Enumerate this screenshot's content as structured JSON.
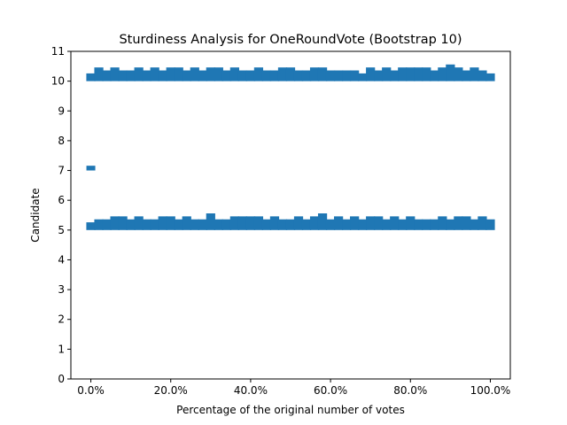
{
  "chart_data": {
    "type": "scatter",
    "title": "Sturdiness Analysis for OneRoundVote (Bootstrap 10)",
    "xlabel": "Percentage of the original number of votes",
    "ylabel": "Candidate",
    "xlim": [
      -0.05,
      1.05
    ],
    "ylim": [
      0,
      11
    ],
    "xticks": [
      0,
      0.2,
      0.4,
      0.6,
      0.8,
      1.0
    ],
    "xtick_labels": [
      "0.0%",
      "20.0%",
      "40.0%",
      "60.0%",
      "80.0%",
      "100.0%"
    ],
    "yticks": [
      0,
      1,
      2,
      3,
      4,
      5,
      6,
      7,
      8,
      9,
      10,
      11
    ],
    "ytick_labels": [
      "0",
      "1",
      "2",
      "3",
      "4",
      "5",
      "6",
      "7",
      "8",
      "9",
      "10",
      "11"
    ],
    "marker_color": "#1f77b4",
    "marker": "square",
    "grid": false,
    "legend": "none",
    "series": [
      {
        "band": 10,
        "x": [
          0.0,
          0.02,
          0.04,
          0.06,
          0.08,
          0.1,
          0.12,
          0.14,
          0.16,
          0.18,
          0.2,
          0.22,
          0.24,
          0.26,
          0.28,
          0.3,
          0.32,
          0.34,
          0.36,
          0.38,
          0.4,
          0.42,
          0.44,
          0.46,
          0.48,
          0.5,
          0.52,
          0.54,
          0.56,
          0.58,
          0.6,
          0.62,
          0.64,
          0.66,
          0.68,
          0.7,
          0.72,
          0.74,
          0.76,
          0.78,
          0.8,
          0.82,
          0.84,
          0.86,
          0.88,
          0.9,
          0.92,
          0.94,
          0.96,
          0.98,
          1.0
        ],
        "y": [
          10.2,
          10.4,
          10.3,
          10.4,
          10.3,
          10.3,
          10.4,
          10.3,
          10.4,
          10.3,
          10.4,
          10.4,
          10.3,
          10.4,
          10.3,
          10.4,
          10.4,
          10.3,
          10.4,
          10.3,
          10.3,
          10.4,
          10.3,
          10.3,
          10.4,
          10.4,
          10.3,
          10.3,
          10.4,
          10.4,
          10.3,
          10.3,
          10.3,
          10.3,
          10.2,
          10.4,
          10.3,
          10.4,
          10.3,
          10.4,
          10.4,
          10.4,
          10.4,
          10.3,
          10.4,
          10.5,
          10.4,
          10.3,
          10.4,
          10.3,
          10.2
        ]
      },
      {
        "band": 7,
        "x": [
          0.0
        ],
        "y": [
          7.1
        ]
      },
      {
        "band": 5,
        "x": [
          0.0,
          0.02,
          0.04,
          0.06,
          0.08,
          0.1,
          0.12,
          0.14,
          0.16,
          0.18,
          0.2,
          0.22,
          0.24,
          0.26,
          0.28,
          0.3,
          0.32,
          0.34,
          0.36,
          0.38,
          0.4,
          0.42,
          0.44,
          0.46,
          0.48,
          0.5,
          0.52,
          0.54,
          0.56,
          0.58,
          0.6,
          0.62,
          0.64,
          0.66,
          0.68,
          0.7,
          0.72,
          0.74,
          0.76,
          0.78,
          0.8,
          0.82,
          0.84,
          0.86,
          0.88,
          0.9,
          0.92,
          0.94,
          0.96,
          0.98,
          1.0
        ],
        "y": [
          5.2,
          5.3,
          5.3,
          5.4,
          5.4,
          5.3,
          5.4,
          5.3,
          5.3,
          5.4,
          5.4,
          5.3,
          5.4,
          5.3,
          5.3,
          5.5,
          5.3,
          5.3,
          5.4,
          5.4,
          5.4,
          5.4,
          5.3,
          5.4,
          5.3,
          5.3,
          5.4,
          5.3,
          5.4,
          5.5,
          5.3,
          5.4,
          5.3,
          5.4,
          5.3,
          5.4,
          5.4,
          5.3,
          5.4,
          5.3,
          5.4,
          5.3,
          5.3,
          5.3,
          5.4,
          5.3,
          5.4,
          5.4,
          5.3,
          5.4,
          5.3
        ]
      }
    ]
  }
}
